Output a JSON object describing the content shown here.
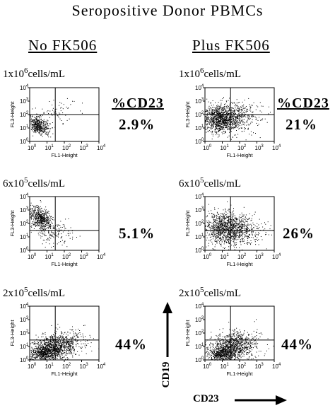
{
  "title": "Seropositive Donor PBMCs",
  "columns": [
    {
      "label": "No FK506"
    },
    {
      "label": "Plus FK506"
    }
  ],
  "percent_header": "%CD23",
  "rows": [
    {
      "conc_base": "1x10",
      "conc_exp": "6",
      "conc_unit": "cells/mL"
    },
    {
      "conc_base": "6x10",
      "conc_exp": "5",
      "conc_unit": "cells/mL"
    },
    {
      "conc_base": "2x10",
      "conc_exp": "5",
      "conc_unit": "cells/mL"
    }
  ],
  "axis_labels": {
    "y": "CD19",
    "x": "CD23"
  },
  "plot_axis": {
    "x": "FL1-Height",
    "y": "FL3-Height",
    "tick_exponents": [
      "0",
      "1",
      "2",
      "3",
      "4"
    ],
    "tick_base": "10"
  },
  "chart_data": [
    {
      "type": "scatter",
      "condition": "No FK506",
      "density": "1x10^6 cells/mL",
      "percent_cd23": "2.9%",
      "xlim": [
        1,
        10000
      ],
      "ylim": [
        1,
        10000
      ],
      "quadrant_x": 30,
      "quadrant_y": 100,
      "xlabel": "FL1-Height",
      "ylabel": "FL3-Height",
      "xscale": "log",
      "yscale": "log"
    },
    {
      "type": "scatter",
      "condition": "Plus FK506",
      "density": "1x10^6 cells/mL",
      "percent_cd23": "21%",
      "xlim": [
        1,
        10000
      ],
      "ylim": [
        1,
        10000
      ],
      "quadrant_x": 30,
      "quadrant_y": 100,
      "xlabel": "FL1-Height",
      "ylabel": "FL3-Height",
      "xscale": "log",
      "yscale": "log"
    },
    {
      "type": "scatter",
      "condition": "No FK506",
      "density": "6x10^5 cells/mL",
      "percent_cd23": "5.1%",
      "xlim": [
        1,
        10000
      ],
      "ylim": [
        1,
        10000
      ],
      "quadrant_x": 30,
      "quadrant_y": 30,
      "xlabel": "FL1-Height",
      "ylabel": "FL3-Height",
      "xscale": "log",
      "yscale": "log"
    },
    {
      "type": "scatter",
      "condition": "Plus FK506",
      "density": "6x10^5 cells/mL",
      "percent_cd23": "26%",
      "xlim": [
        1,
        10000
      ],
      "ylim": [
        1,
        10000
      ],
      "quadrant_x": 30,
      "quadrant_y": 30,
      "xlabel": "FL1-Height",
      "ylabel": "FL3-Height",
      "xscale": "log",
      "yscale": "log"
    },
    {
      "type": "scatter",
      "condition": "No FK506",
      "density": "2x10^5 cells/mL",
      "percent_cd23": "44%",
      "xlim": [
        1,
        10000
      ],
      "ylim": [
        1,
        10000
      ],
      "quadrant_x": 30,
      "quadrant_y": 30,
      "xlabel": "FL1-Height",
      "ylabel": "FL3-Height",
      "xscale": "log",
      "yscale": "log"
    },
    {
      "type": "scatter",
      "condition": "Plus FK506",
      "density": "2x10^5 cells/mL",
      "percent_cd23": "44%",
      "xlim": [
        1,
        10000
      ],
      "ylim": [
        1,
        10000
      ],
      "quadrant_x": 30,
      "quadrant_y": 30,
      "xlabel": "FL1-Height",
      "ylabel": "FL3-Height",
      "xscale": "log",
      "yscale": "log"
    }
  ]
}
